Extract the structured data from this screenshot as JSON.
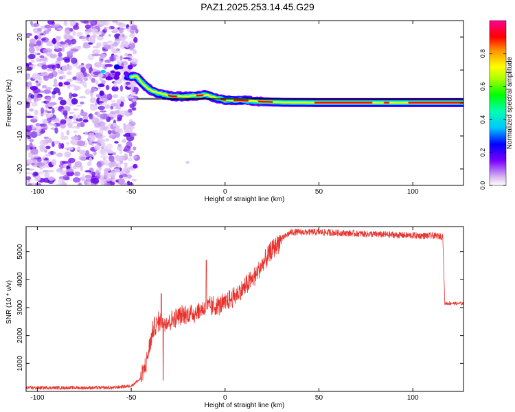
{
  "title": "PAZ1.2025.253.14.45.G29",
  "colors": {
    "snr_line": "#e8322d",
    "background": "#ffffff",
    "axis": "#000000",
    "reference_line": "#000000"
  },
  "chart_data": [
    {
      "type": "heatmap",
      "name": "spectrogram",
      "xlabel": "Height of straight line (km)",
      "ylabel": "Frequency (Hz)",
      "xlim": [
        -106,
        127
      ],
      "ylim": [
        -25,
        25
      ],
      "xticks": [
        -100,
        -50,
        0,
        50,
        100
      ],
      "xtick_labels": [
        "-100",
        "-50",
        "0",
        "50",
        "100"
      ],
      "yticks": [
        -20,
        -10,
        0,
        10,
        20
      ],
      "ytick_labels": [
        "-20",
        "-10",
        "0",
        "10",
        "20"
      ],
      "reference_line_hz": [
        0.5,
        0.8
      ],
      "noise_region_km": [
        -106,
        -47
      ],
      "ridge": {
        "x": [
          -47,
          -44,
          -40,
          -36,
          -32,
          -28,
          -24,
          -20,
          -15,
          -10,
          -5,
          0,
          10,
          20,
          30,
          50,
          80,
          100,
          127
        ],
        "y": [
          8,
          6,
          4,
          3,
          2.5,
          2,
          2,
          2,
          2.2,
          2.5,
          1.5,
          0.9,
          0.8,
          0.4,
          0.2,
          0.1,
          0.1,
          0.1,
          0.1
        ]
      },
      "strong_segments_km": [
        [
          -30,
          -26
        ],
        [
          -15,
          -12
        ],
        [
          -2,
          0
        ],
        [
          5,
          12
        ],
        [
          18,
          25
        ],
        [
          48,
          78
        ],
        [
          85,
          87
        ],
        [
          98,
          127
        ]
      ],
      "colorbar": {
        "label": "Normalized spectral amplitude",
        "range": [
          0,
          1
        ],
        "ticks": [
          0,
          0.2,
          0.4,
          0.6,
          0.8
        ],
        "tick_labels": [
          "0.0",
          "0.2",
          "0.4",
          "0.6",
          "0.8"
        ]
      }
    },
    {
      "type": "line",
      "name": "snr",
      "xlabel": "Height of straight line (km)",
      "ylabel": "SNR (10 * v/v)",
      "xlim": [
        -106,
        127
      ],
      "ylim": [
        0,
        5900
      ],
      "xticks": [
        -100,
        -50,
        0,
        50,
        100
      ],
      "xtick_labels": [
        "-100",
        "-50",
        "0",
        "50",
        "100"
      ],
      "yticks": [
        1000,
        2000,
        3000,
        4000,
        5000
      ],
      "ytick_labels": [
        "1000",
        "2000",
        "3000",
        "4000",
        "5000"
      ],
      "series": [
        {
          "name": "SNR",
          "x": [
            -106,
            -90,
            -60,
            -50,
            -45,
            -42,
            -40,
            -38,
            -35,
            -30,
            -25,
            -20,
            -15,
            -10,
            -5,
            0,
            5,
            10,
            15,
            20,
            25,
            30,
            35,
            50,
            70,
            90,
            100,
            110,
            116,
            117,
            120,
            127
          ],
          "y": [
            130,
            130,
            130,
            200,
            450,
            1000,
            1700,
            2300,
            2500,
            2500,
            2700,
            2750,
            2850,
            3000,
            3050,
            3150,
            3400,
            3700,
            4050,
            4550,
            5050,
            5450,
            5700,
            5700,
            5650,
            5600,
            5580,
            5570,
            5550,
            3150,
            3150,
            3150
          ]
        }
      ],
      "spikes": [
        {
          "x": -34,
          "y": 3500
        },
        {
          "x": -10,
          "y": 4700
        },
        {
          "x": -33,
          "y": 400
        }
      ],
      "noise_amplitude": 60
    }
  ]
}
